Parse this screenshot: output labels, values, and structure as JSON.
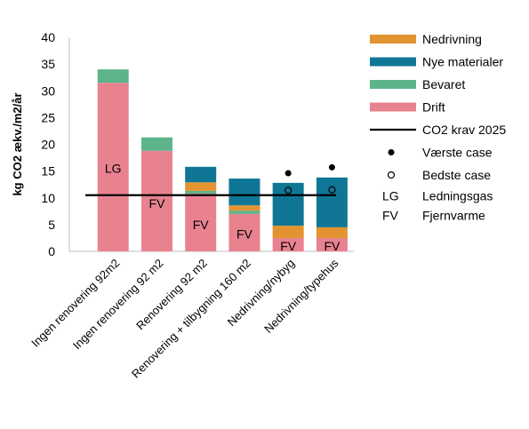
{
  "chart_data": {
    "type": "bar",
    "stacked": true,
    "ylabel": "kg CO2 ækv./m2/år",
    "ylim": [
      0,
      40
    ],
    "yticks": [
      "0",
      "5",
      "10",
      "15",
      "20",
      "25",
      "30",
      "35",
      "40"
    ],
    "categories": [
      "Ingen renovering 92m2",
      "Ingen renovering 92 m2",
      "Renovering 92 m2",
      "Renovering + tilbygning 160 m2",
      "Nedrivning/nybyg",
      "Nedrivning/typehus"
    ],
    "series": [
      {
        "name": "Drift",
        "color": "#e8828f",
        "values": [
          31.5,
          18.8,
          10.8,
          7.0,
          2.5,
          2.5
        ]
      },
      {
        "name": "Bevaret",
        "color": "#5db38a",
        "values": [
          2.5,
          2.5,
          0.5,
          0.6,
          0,
          0
        ]
      },
      {
        "name": "Nedrivning",
        "color": "#e3932f",
        "values": [
          0,
          0,
          1.6,
          1.0,
          2.3,
          2.0
        ]
      },
      {
        "name": "Nye materialer",
        "color": "#0f7795",
        "values": [
          0,
          0,
          2.9,
          5.0,
          8.0,
          9.3
        ]
      }
    ],
    "legend_order": [
      "Nedrivning",
      "Nye materialer",
      "Bevaret",
      "Drift"
    ],
    "reference_line": {
      "name": "CO2 krav 2025",
      "value": 10.5
    },
    "worst_case": {
      "name": "Værste case",
      "values": [
        null,
        null,
        null,
        null,
        14.6,
        15.7
      ]
    },
    "best_case": {
      "name": "Bedste case",
      "values": [
        null,
        null,
        null,
        null,
        11.4,
        11.5
      ]
    },
    "bar_labels": [
      {
        "category": 0,
        "text": "LG",
        "y": 15.5
      },
      {
        "category": 1,
        "text": "FV",
        "y": 9.0
      },
      {
        "category": 2,
        "text": "FV",
        "y": 5.0
      },
      {
        "category": 3,
        "text": "FV",
        "y": 3.2
      },
      {
        "category": 4,
        "text": "FV",
        "y": 1.0
      },
      {
        "category": 5,
        "text": "FV",
        "y": 1.0
      }
    ],
    "abbreviations": [
      {
        "abbr": "LG",
        "text": "Ledningsgas"
      },
      {
        "abbr": "FV",
        "text": "Fjernvarme"
      }
    ],
    "grid": false,
    "legend_position": "right"
  }
}
